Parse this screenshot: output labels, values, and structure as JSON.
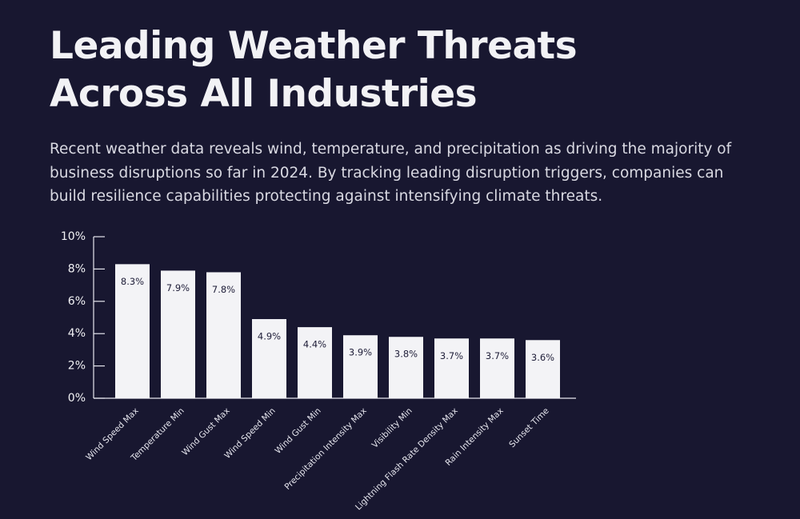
{
  "chart_data": {
    "type": "bar",
    "title": "Leading Weather Threats Across All Industries",
    "subtitle": "Recent weather data reveals wind, temperature, and precipitation as driving the majority of business disruptions so far in 2024. By tracking leading disruption triggers, companies can build resilience capabilities protecting against intensifying climate threats.",
    "categories": [
      "Wind Speed Max",
      "Temperature Min",
      "Wind Gust Max",
      "Wind Speed Min",
      "Wind Gust Min",
      "Precipitation Intensity Max",
      "Visibility Min",
      "Lightning Flash Rate Density Max",
      "Rain Intensity Max",
      "Sunset Time"
    ],
    "values": [
      8.3,
      7.9,
      7.8,
      4.9,
      4.4,
      3.9,
      3.8,
      3.7,
      3.7,
      3.6
    ],
    "value_labels": [
      "8.3%",
      "7.9%",
      "7.8%",
      "4.9%",
      "4.4%",
      "3.9%",
      "3.8%",
      "3.7%",
      "3.7%",
      "3.6%"
    ],
    "color": "#f3f3f6",
    "ylim": [
      0,
      10
    ],
    "yticks": [
      {
        "value": 0,
        "label": "0%"
      },
      {
        "value": 2,
        "label": "2%"
      },
      {
        "value": 4,
        "label": "4%"
      },
      {
        "value": 6,
        "label": "6%"
      },
      {
        "value": 8,
        "label": "8%"
      },
      {
        "value": 10,
        "label": "10%"
      }
    ],
    "grid": false
  }
}
